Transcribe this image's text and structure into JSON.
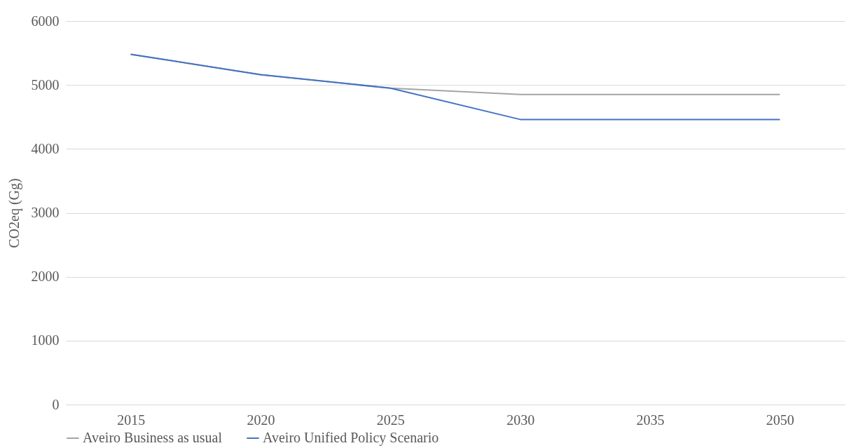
{
  "chart_data": {
    "type": "line",
    "ylabel": "CO2eq (Gg)",
    "categories": [
      "2015",
      "2020",
      "2025",
      "2030",
      "2035",
      "2050"
    ],
    "series": [
      {
        "name": "Aveiro Business as usual",
        "color": "#a5a5a5",
        "values": [
          5480,
          5160,
          4950,
          4850,
          4850,
          4850
        ]
      },
      {
        "name": "Aveiro Unified Policy Scenario",
        "color": "#4472c4",
        "values": [
          5480,
          5160,
          4950,
          4460,
          4460,
          4460
        ]
      }
    ],
    "ylim": [
      0,
      6000
    ],
    "yticks": [
      0,
      1000,
      2000,
      3000,
      4000,
      5000,
      6000
    ],
    "grid": "y",
    "legend": "bottom",
    "marker": "none",
    "line_style": "solid"
  }
}
